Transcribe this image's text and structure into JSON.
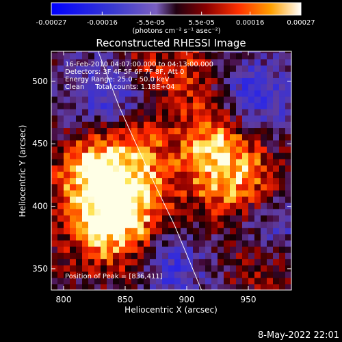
{
  "colorbar": {
    "tick_labels": [
      "-0.00027",
      "-0.00016",
      "-5.5e-05",
      "5.5e-05",
      "0.00016",
      "0.00027"
    ],
    "tick_values": [
      -0.00027,
      -0.00016,
      -5.5e-05,
      5.5e-05,
      0.00016,
      0.00027
    ],
    "range": [
      -0.00027,
      0.00027
    ],
    "units_label": "(photons cm⁻² s⁻¹ asec⁻²)"
  },
  "chart_data": {
    "type": "heatmap",
    "title": "Reconstructed RHESSI Image",
    "xlabel": "Heliocentric X (arcsec)",
    "ylabel": "Heliocentric Y (arcsec)",
    "xlim": [
      790,
      985
    ],
    "ylim": [
      333,
      524
    ],
    "x_ticks": [
      800,
      850,
      900,
      950
    ],
    "y_ticks": [
      350,
      400,
      450,
      500
    ],
    "annotations": [
      "16-Feb-2010 04:07:00.000 to 04:13:00.000",
      "Detectors: 3F 4F 5F 6F 7F 8F, Att 0",
      "Energy Range: 25.0 - 50.0 keV",
      "Clean     Total counts: 1.18E+04"
    ],
    "peak_label": "Position of Peak = [836,411]",
    "peak": [
      836,
      411
    ],
    "limb_curve": [
      [
        828,
        524
      ],
      [
        845,
        480
      ],
      [
        868,
        430
      ],
      [
        890,
        385
      ],
      [
        912,
        333
      ]
    ],
    "bright_regions": [
      {
        "x": 842,
        "y": 410,
        "amplitude": 1.0,
        "sigma": 30
      },
      {
        "x": 850,
        "y": 455,
        "amplitude": 0.75,
        "sigma": 22
      },
      {
        "x": 835,
        "y": 378,
        "amplitude": 0.7,
        "sigma": 25
      },
      {
        "x": 935,
        "y": 420,
        "amplitude": 0.85,
        "sigma": 26
      },
      {
        "x": 920,
        "y": 455,
        "amplitude": 0.7,
        "sigma": 22
      },
      {
        "x": 900,
        "y": 505,
        "amplitude": 0.55,
        "sigma": 20
      },
      {
        "x": 860,
        "y": 510,
        "amplitude": 0.5,
        "sigma": 18
      },
      {
        "x": 955,
        "y": 350,
        "amplitude": 0.45,
        "sigma": 18
      },
      {
        "x": 815,
        "y": 430,
        "amplitude": 0.5,
        "sigma": 18
      }
    ],
    "dark_regions": [
      {
        "x": 840,
        "y": 480,
        "amplitude": -0.9,
        "sigma": 25
      },
      {
        "x": 950,
        "y": 485,
        "amplitude": -0.7,
        "sigma": 24
      },
      {
        "x": 885,
        "y": 350,
        "amplitude": -0.6,
        "sigma": 22
      },
      {
        "x": 965,
        "y": 380,
        "amplitude": -0.5,
        "sigma": 20
      }
    ]
  },
  "footer": {
    "date": "8-May-2022 22:01"
  }
}
